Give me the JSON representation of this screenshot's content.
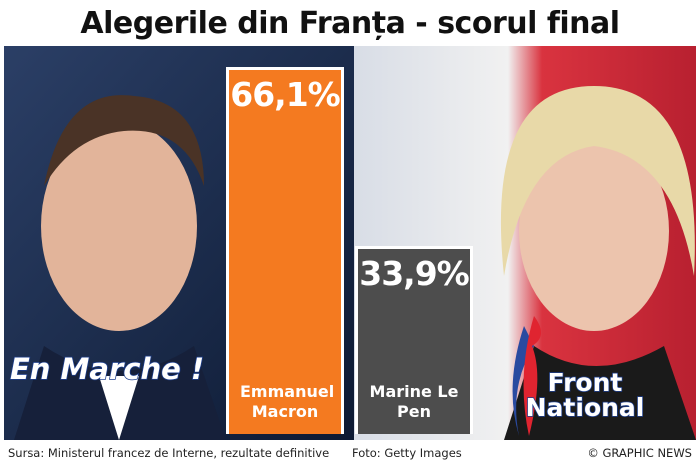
{
  "chart_data": {
    "type": "bar",
    "title": "Alegerile din Franța - scorul final",
    "categories": [
      "Emmanuel Macron",
      "Marine Le Pen"
    ],
    "values": [
      66.1,
      33.9
    ],
    "value_labels": [
      "66,1%",
      "33,9%"
    ],
    "colors": [
      "#f47a20",
      "#4d4d4d"
    ],
    "parties": [
      "En Marche !",
      "Front National"
    ],
    "source": "Sursa: Ministerul francez de Interne, rezultate definitive",
    "photo_credit": "Foto: Getty Images",
    "copyright": "© GRAPHIC NEWS"
  }
}
